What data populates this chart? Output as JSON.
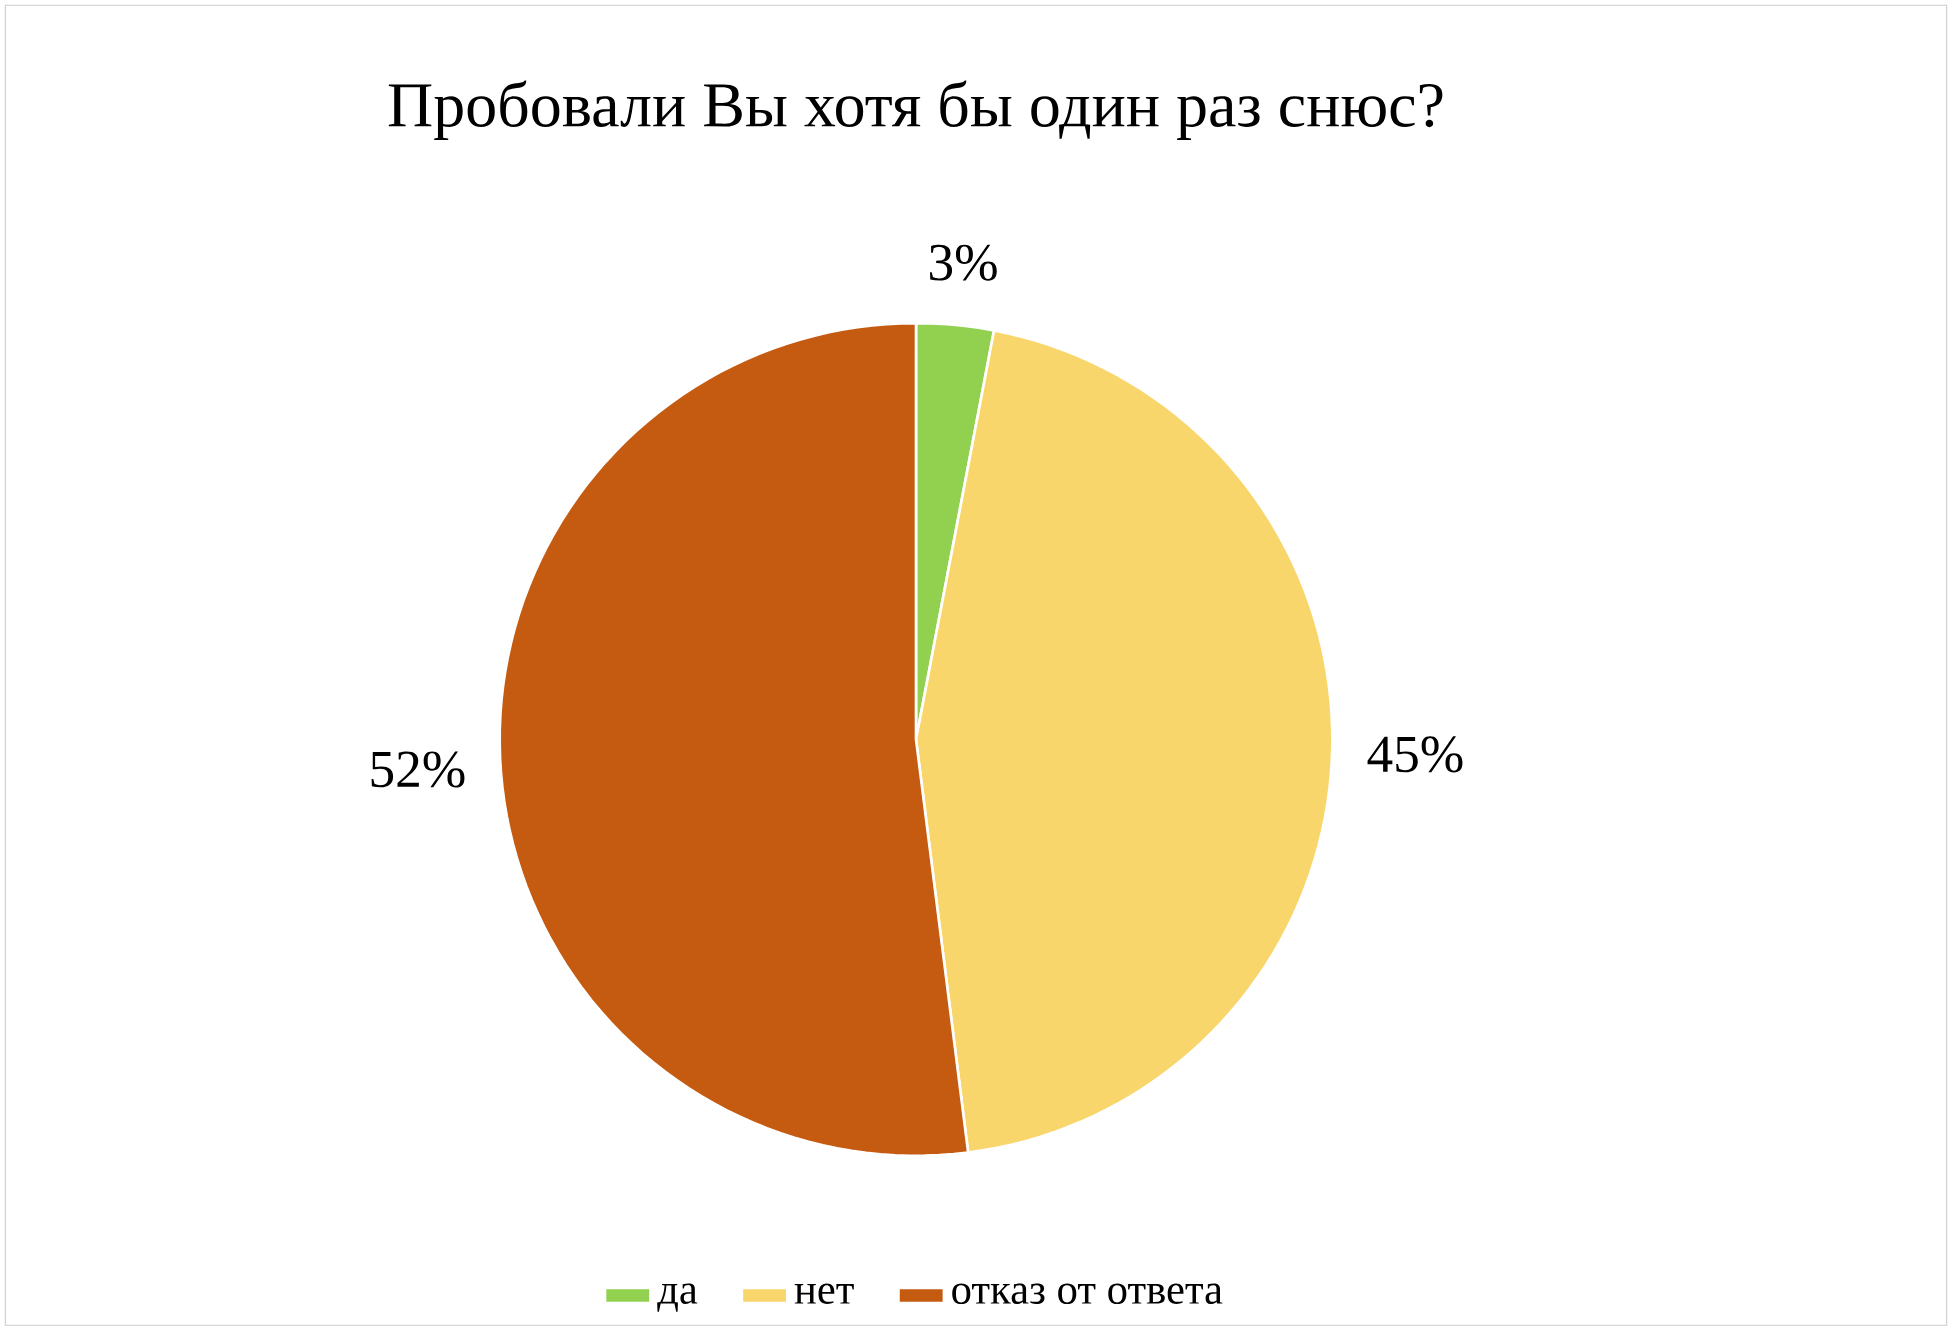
{
  "chart_data": {
    "type": "pie",
    "title": "Пробовали Вы хотя бы один раз снюс?",
    "categories": [
      "да",
      "нет",
      "отказ от ответа"
    ],
    "values": [
      3,
      45,
      52
    ],
    "colors": [
      "#92d050",
      "#f9d66b",
      "#c55a11"
    ],
    "value_labels": [
      "3%",
      "45%",
      "52%"
    ],
    "legend": "bottom"
  }
}
